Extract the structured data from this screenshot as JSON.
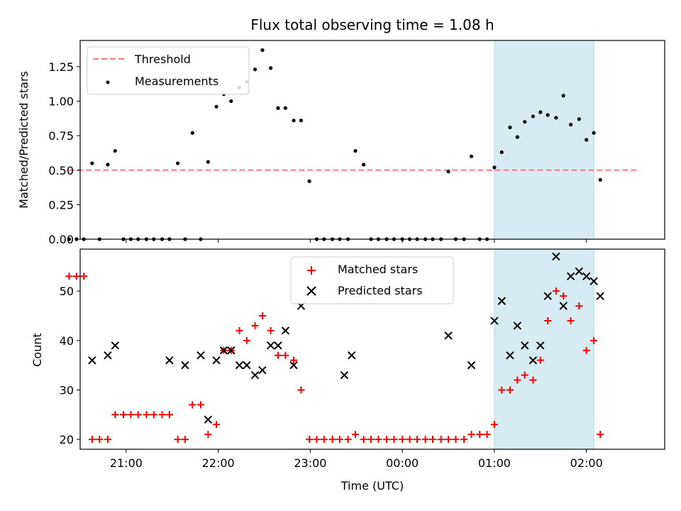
{
  "chart_data": [
    {
      "type": "scatter",
      "panel": "top",
      "title": "Flux total observing time = 1.08 h",
      "xlabel": "",
      "ylabel": "Matched/Predicted stars",
      "xlim": [
        -0.5,
        5.85
      ],
      "ylim": [
        0,
        1.44
      ],
      "x_unit": "hours after 21:00 UTC",
      "yticks": [
        0,
        0.25,
        0.5,
        0.75,
        1.0,
        1.25
      ],
      "ytick_labels": [
        "0.00",
        "0.25",
        "0.50",
        "0.75",
        "1.00",
        "1.25"
      ],
      "xticks": [
        0,
        1,
        2,
        3,
        4,
        5
      ],
      "shaded_region": [
        4.0,
        5.08
      ],
      "legend": {
        "placement": "top-left",
        "entries": [
          "Threshold",
          "Measurements"
        ]
      },
      "series": [
        {
          "name": "Threshold",
          "kind": "line",
          "style": "dashed",
          "color": "#f08080",
          "x": [
            -0.62,
            5.55
          ],
          "y": [
            0.5,
            0.5
          ]
        },
        {
          "name": "Measurements",
          "kind": "scatter",
          "color": "#000000",
          "x": [
            -0.62,
            -0.54,
            -0.46,
            -0.37,
            -0.29,
            -0.2,
            -0.12,
            -0.03,
            0.05,
            0.13,
            0.22,
            0.3,
            0.39,
            0.47,
            0.56,
            0.64,
            0.72,
            0.81,
            0.89,
            0.98,
            1.06,
            1.14,
            1.23,
            1.31,
            1.4,
            1.48,
            1.57,
            1.65,
            1.73,
            1.82,
            1.9,
            1.99,
            2.07,
            2.15,
            2.24,
            2.32,
            2.41,
            2.49,
            2.58,
            2.66,
            2.74,
            2.83,
            2.91,
            3.0,
            3.08,
            3.16,
            3.25,
            3.33,
            3.42,
            3.5,
            3.58,
            3.67,
            3.75,
            3.84,
            3.92,
            4.0,
            4.08,
            4.17,
            4.25,
            4.33,
            4.42,
            4.5,
            4.58,
            4.67,
            4.75,
            4.83,
            4.92,
            5.0,
            5.08,
            5.15
          ],
          "y": [
            0,
            0,
            0,
            0.55,
            0,
            0.54,
            0.64,
            0,
            0,
            0,
            0,
            0,
            0,
            0,
            0.55,
            0,
            0.77,
            0,
            0.56,
            0.96,
            1.05,
            1.0,
            1.1,
            1.14,
            1.23,
            1.37,
            1.24,
            0.95,
            0.95,
            0.86,
            0.86,
            0.42,
            0,
            0,
            0,
            0,
            0,
            0.64,
            0.54,
            0,
            0,
            0,
            0,
            0,
            0,
            0,
            0,
            0,
            0,
            0.49,
            0,
            0,
            0.6,
            0,
            0,
            0.52,
            0.63,
            0.81,
            0.74,
            0.85,
            0.89,
            0.92,
            0.9,
            0.88,
            1.04,
            0.83,
            0.87,
            0.72,
            0.77,
            0.43
          ]
        }
      ]
    },
    {
      "type": "scatter",
      "panel": "bottom",
      "title": "",
      "xlabel": "Time (UTC)",
      "ylabel": "Count",
      "xlim": [
        -0.5,
        5.85
      ],
      "ylim": [
        18,
        58.5
      ],
      "x_unit": "hours after 21:00 UTC",
      "yticks": [
        20,
        30,
        40,
        50
      ],
      "ytick_labels": [
        "20",
        "30",
        "40",
        "50"
      ],
      "xticks": [
        0,
        1,
        2,
        3,
        4,
        5
      ],
      "xtick_labels": [
        "21:00",
        "22:00",
        "23:00",
        "00:00",
        "01:00",
        "02:00"
      ],
      "shaded_region": [
        4.0,
        5.08
      ],
      "legend": {
        "placement": "top-center",
        "entries": [
          "Matched stars",
          "Predicted stars"
        ]
      },
      "series": [
        {
          "name": "Matched stars",
          "marker": "plus",
          "color": "#ff0000",
          "x": [
            -0.62,
            -0.54,
            -0.46,
            -0.37,
            -0.29,
            -0.2,
            -0.12,
            -0.03,
            0.05,
            0.13,
            0.22,
            0.3,
            0.39,
            0.47,
            0.56,
            0.64,
            0.72,
            0.81,
            0.89,
            0.98,
            1.06,
            1.14,
            1.23,
            1.31,
            1.4,
            1.48,
            1.57,
            1.65,
            1.73,
            1.82,
            1.9,
            1.99,
            2.07,
            2.15,
            2.24,
            2.32,
            2.41,
            2.49,
            2.58,
            2.66,
            2.74,
            2.83,
            2.91,
            3.0,
            3.08,
            3.16,
            3.25,
            3.33,
            3.42,
            3.5,
            3.58,
            3.67,
            3.75,
            3.84,
            3.92,
            4.0,
            4.08,
            4.17,
            4.25,
            4.33,
            4.42,
            4.5,
            4.58,
            4.67,
            4.75,
            4.83,
            4.92,
            5.0,
            5.08,
            5.15
          ],
          "y": [
            53,
            53,
            53,
            20,
            20,
            20,
            25,
            25,
            25,
            25,
            25,
            25,
            25,
            25,
            20,
            20,
            27,
            27,
            21,
            23,
            38,
            38,
            42,
            40,
            43,
            45,
            42,
            37,
            37,
            36,
            30,
            20,
            20,
            20,
            20,
            20,
            20,
            21,
            20,
            20,
            20,
            20,
            20,
            20,
            20,
            20,
            20,
            20,
            20,
            20,
            20,
            20,
            21,
            21,
            21,
            23,
            30,
            30,
            32,
            33,
            32,
            36,
            44,
            50,
            49,
            44,
            47,
            38,
            40,
            21
          ]
        },
        {
          "name": "Predicted stars",
          "marker": "x",
          "color": "#000000",
          "x": [
            -0.37,
            -0.2,
            -0.12,
            0.47,
            0.64,
            0.81,
            0.89,
            0.98,
            1.06,
            1.14,
            1.23,
            1.31,
            1.4,
            1.48,
            1.57,
            1.65,
            1.73,
            1.82,
            1.9,
            2.37,
            2.45,
            3.5,
            3.75,
            4.0,
            4.08,
            4.17,
            4.25,
            4.33,
            4.42,
            4.5,
            4.58,
            4.67,
            4.75,
            4.83,
            4.92,
            5.0,
            5.08,
            5.15
          ],
          "y": [
            36,
            37,
            39,
            36,
            35,
            37,
            24,
            36,
            38,
            38,
            35,
            35,
            33,
            34,
            39,
            39,
            42,
            35,
            47,
            33,
            37,
            41,
            35,
            44,
            48,
            37,
            43,
            39,
            36,
            39,
            49,
            57,
            47,
            53,
            54,
            53,
            52,
            49
          ]
        }
      ]
    }
  ]
}
